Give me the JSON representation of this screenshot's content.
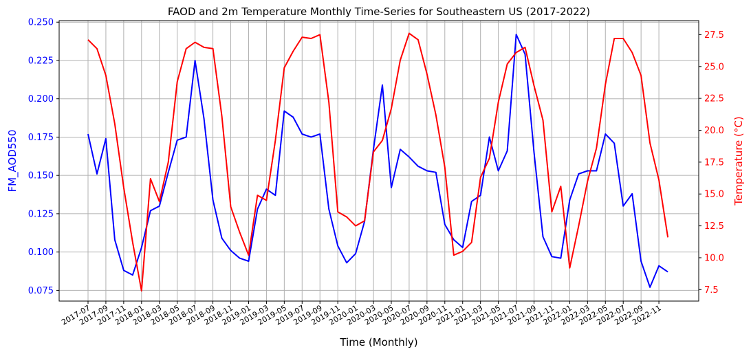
{
  "chart_data": {
    "type": "line",
    "title": "FAOD and 2m Temperature Monthly Time-Series for Southeastern US (2017-2022)",
    "xlabel": "Time (Monthly)",
    "ylabel_left": "FM_AOD550",
    "ylabel_right": "Temperature (°C)",
    "left_color": "#0000ff",
    "right_color": "#ff0000",
    "grid": true,
    "ylim_left": [
      0.068,
      0.251
    ],
    "ylim_right": [
      6.6,
      28.6
    ],
    "yticks_left": [
      "0.075",
      "0.100",
      "0.125",
      "0.150",
      "0.175",
      "0.200",
      "0.225",
      "0.250"
    ],
    "yticks_right": [
      "7.5",
      "10.0",
      "12.5",
      "15.0",
      "17.5",
      "20.0",
      "22.5",
      "25.0",
      "27.5"
    ],
    "xtick_labels": [
      "2017-07",
      "2017-09",
      "2017-11",
      "2018-01",
      "2018-03",
      "2018-05",
      "2018-07",
      "2018-09",
      "2018-11",
      "2019-01",
      "2019-03",
      "2019-05",
      "2019-07",
      "2019-09",
      "2019-11",
      "2020-01",
      "2020-03",
      "2020-05",
      "2020-07",
      "2020-09",
      "2020-11",
      "2021-01",
      "2021-03",
      "2021-05",
      "2021-07",
      "2021-09",
      "2021-11",
      "2022-01",
      "2022-03",
      "2022-05",
      "2022-07",
      "2022-09",
      "2022-11"
    ],
    "x": [
      "2017-07",
      "2017-08",
      "2017-09",
      "2017-10",
      "2017-11",
      "2017-12",
      "2018-01",
      "2018-02",
      "2018-03",
      "2018-04",
      "2018-05",
      "2018-06",
      "2018-07",
      "2018-08",
      "2018-09",
      "2018-10",
      "2018-11",
      "2018-12",
      "2019-01",
      "2019-02",
      "2019-03",
      "2019-04",
      "2019-05",
      "2019-06",
      "2019-07",
      "2019-08",
      "2019-09",
      "2019-10",
      "2019-11",
      "2019-12",
      "2020-01",
      "2020-02",
      "2020-03",
      "2020-04",
      "2020-05",
      "2020-06",
      "2020-07",
      "2020-08",
      "2020-09",
      "2020-10",
      "2020-11",
      "2020-12",
      "2021-01",
      "2021-02",
      "2021-03",
      "2021-04",
      "2021-05",
      "2021-06",
      "2021-07",
      "2021-08",
      "2021-09",
      "2021-10",
      "2021-11",
      "2021-12",
      "2022-01",
      "2022-02",
      "2022-03",
      "2022-04",
      "2022-05",
      "2022-06",
      "2022-07",
      "2022-08",
      "2022-09",
      "2022-10",
      "2022-11",
      "2022-12"
    ],
    "series": [
      {
        "name": "FM_AOD550",
        "axis": "left",
        "values": [
          0.177,
          0.151,
          0.174,
          0.108,
          0.088,
          0.085,
          0.103,
          0.127,
          0.13,
          0.152,
          0.173,
          0.175,
          0.225,
          0.187,
          0.134,
          0.109,
          0.101,
          0.096,
          0.094,
          0.128,
          0.141,
          0.137,
          0.192,
          0.188,
          0.177,
          0.175,
          0.177,
          0.128,
          0.104,
          0.093,
          0.099,
          0.12,
          0.167,
          0.209,
          0.142,
          0.167,
          0.162,
          0.156,
          0.153,
          0.152,
          0.118,
          0.108,
          0.103,
          0.133,
          0.137,
          0.175,
          0.153,
          0.166,
          0.242,
          0.229,
          0.165,
          0.11,
          0.097,
          0.096,
          0.134,
          0.151,
          0.153,
          0.153,
          0.177,
          0.171,
          0.13,
          0.138,
          0.094,
          0.077,
          0.091,
          0.087
        ]
      },
      {
        "name": "Temperature",
        "axis": "right",
        "values": [
          27.1,
          26.4,
          24.3,
          20.5,
          15.5,
          11.2,
          7.4,
          16.2,
          14.4,
          17.5,
          23.8,
          26.4,
          26.9,
          26.5,
          26.4,
          21.1,
          14.0,
          12.0,
          10.2,
          14.9,
          14.5,
          19.2,
          24.9,
          26.2,
          27.3,
          27.2,
          27.5,
          22.2,
          13.6,
          13.2,
          12.5,
          12.9,
          18.3,
          19.2,
          21.7,
          25.5,
          27.6,
          27.1,
          24.4,
          21.2,
          17.1,
          10.2,
          10.5,
          11.2,
          16.3,
          17.8,
          22.2,
          25.2,
          26.1,
          26.5,
          23.5,
          20.8,
          13.6,
          15.6,
          9.2,
          12.5,
          16.0,
          18.6,
          23.6,
          27.2,
          27.2,
          26.1,
          24.3,
          19.0,
          16.1,
          11.6
        ]
      }
    ]
  }
}
